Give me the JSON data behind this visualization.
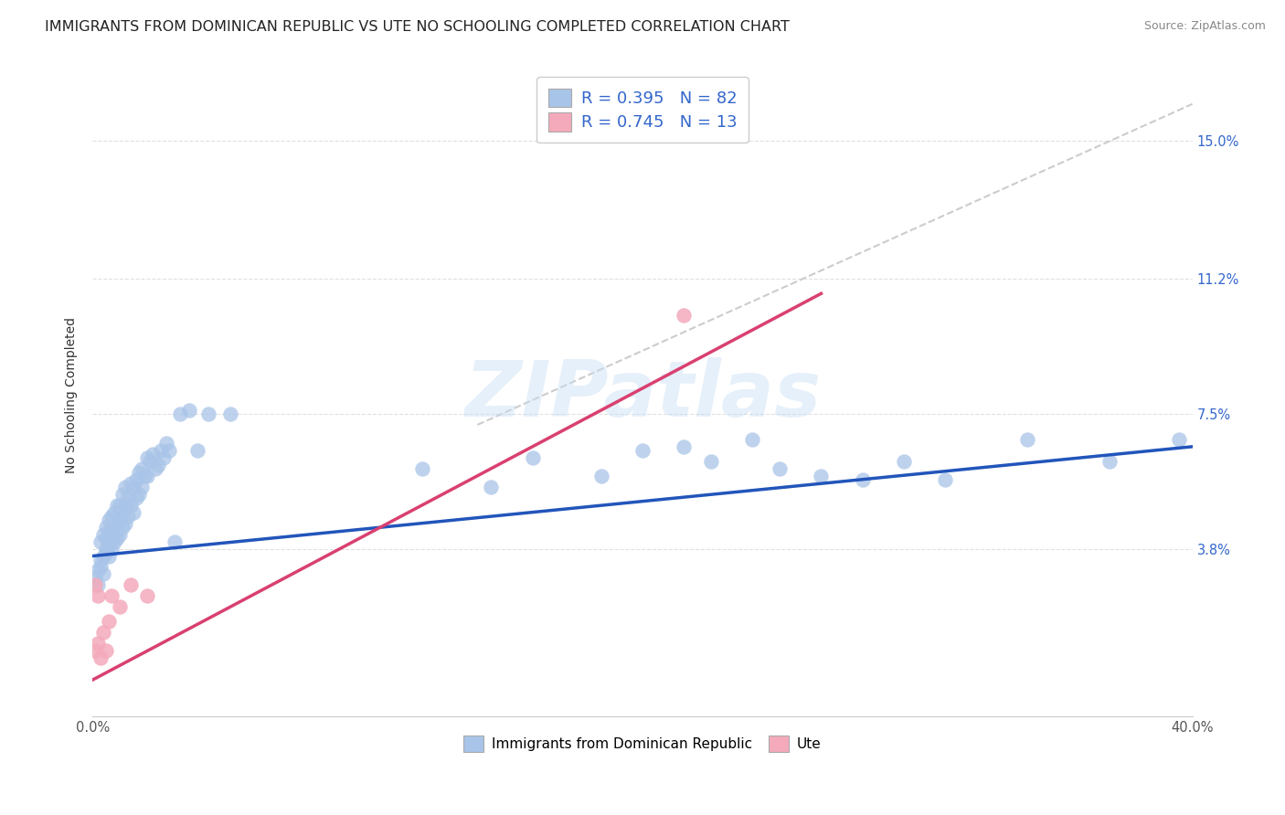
{
  "title": "IMMIGRANTS FROM DOMINICAN REPUBLIC VS UTE NO SCHOOLING COMPLETED CORRELATION CHART",
  "source": "Source: ZipAtlas.com",
  "ylabel": "No Schooling Completed",
  "xlim": [
    0.0,
    0.4
  ],
  "ylim": [
    -0.008,
    0.168
  ],
  "ytick_values": [
    0.038,
    0.075,
    0.112,
    0.15
  ],
  "ytick_labels": [
    "3.8%",
    "7.5%",
    "11.2%",
    "15.0%"
  ],
  "xtick_values": [
    0.0,
    0.4
  ],
  "xtick_labels": [
    "0.0%",
    "40.0%"
  ],
  "watermark": "ZIPatlas",
  "legend1_label": "R = 0.395   N = 82",
  "legend2_label": "R = 0.745   N = 13",
  "legend_bottom1": "Immigrants from Dominican Republic",
  "legend_bottom2": "Ute",
  "blue_scatter_color": "#a8c4e8",
  "pink_scatter_color": "#f4aabb",
  "blue_line_color": "#2255bb",
  "pink_line_color": "#d94070",
  "diag_line_color": "#cccccc",
  "background": "#ffffff",
  "grid_color": "#e0e0e0",
  "blue_x": [
    0.001,
    0.002,
    0.002,
    0.003,
    0.003,
    0.003,
    0.004,
    0.004,
    0.004,
    0.005,
    0.005,
    0.005,
    0.005,
    0.006,
    0.006,
    0.006,
    0.006,
    0.006,
    0.007,
    0.007,
    0.007,
    0.008,
    0.008,
    0.008,
    0.008,
    0.009,
    0.009,
    0.009,
    0.01,
    0.01,
    0.01,
    0.011,
    0.011,
    0.011,
    0.012,
    0.012,
    0.012,
    0.013,
    0.013,
    0.014,
    0.014,
    0.015,
    0.015,
    0.016,
    0.016,
    0.017,
    0.017,
    0.018,
    0.018,
    0.019,
    0.02,
    0.02,
    0.021,
    0.022,
    0.023,
    0.024,
    0.025,
    0.026,
    0.027,
    0.028,
    0.03,
    0.032,
    0.035,
    0.038,
    0.042,
    0.05,
    0.12,
    0.145,
    0.16,
    0.185,
    0.2,
    0.215,
    0.225,
    0.24,
    0.25,
    0.265,
    0.28,
    0.295,
    0.31,
    0.34,
    0.37,
    0.395
  ],
  "blue_y": [
    0.03,
    0.032,
    0.028,
    0.035,
    0.04,
    0.033,
    0.036,
    0.031,
    0.042,
    0.037,
    0.041,
    0.038,
    0.044,
    0.036,
    0.039,
    0.043,
    0.04,
    0.046,
    0.038,
    0.043,
    0.047,
    0.04,
    0.044,
    0.042,
    0.048,
    0.041,
    0.045,
    0.05,
    0.042,
    0.046,
    0.05,
    0.044,
    0.048,
    0.053,
    0.045,
    0.05,
    0.055,
    0.047,
    0.052,
    0.05,
    0.056,
    0.048,
    0.055,
    0.052,
    0.057,
    0.053,
    0.059,
    0.055,
    0.06,
    0.058,
    0.058,
    0.063,
    0.062,
    0.064,
    0.06,
    0.061,
    0.065,
    0.063,
    0.067,
    0.065,
    0.04,
    0.075,
    0.076,
    0.065,
    0.075,
    0.075,
    0.06,
    0.055,
    0.063,
    0.058,
    0.065,
    0.066,
    0.062,
    0.068,
    0.06,
    0.058,
    0.057,
    0.062,
    0.057,
    0.068,
    0.062,
    0.068
  ],
  "pink_x": [
    0.001,
    0.001,
    0.002,
    0.002,
    0.003,
    0.004,
    0.005,
    0.006,
    0.007,
    0.01,
    0.014,
    0.02,
    0.215
  ],
  "pink_y": [
    0.028,
    0.01,
    0.012,
    0.025,
    0.008,
    0.015,
    0.01,
    0.018,
    0.025,
    0.022,
    0.028,
    0.025,
    0.102
  ],
  "blue_line_x": [
    0.0,
    0.4
  ],
  "blue_line_y": [
    0.036,
    0.066
  ],
  "pink_line_x": [
    0.0,
    0.265
  ],
  "pink_line_y": [
    0.002,
    0.108
  ],
  "diag_line_x": [
    0.14,
    0.4
  ],
  "diag_line_y": [
    0.072,
    0.16
  ],
  "title_fontsize": 11.5,
  "tick_fontsize": 10.5,
  "legend_fontsize": 13
}
